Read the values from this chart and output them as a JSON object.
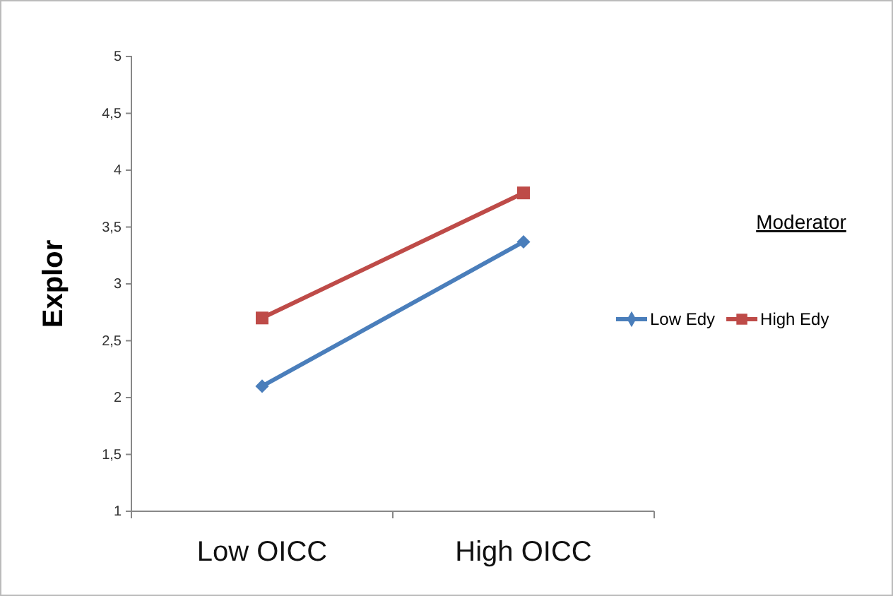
{
  "chart_data": {
    "type": "line",
    "ylabel": "Explor",
    "legend_title": "Moderator",
    "legend": "right",
    "categories": [
      "Low OICC",
      "High OICC"
    ],
    "series": [
      {
        "name": "Low Edy",
        "color": "#4a7ebb",
        "values": [
          2.1,
          3.37
        ],
        "marker": "diamond"
      },
      {
        "name": "High Edy",
        "color": "#be4b48",
        "values": [
          2.7,
          3.8
        ],
        "marker": "square"
      }
    ],
    "ylim": [
      1,
      5
    ],
    "yticks": [
      1,
      {
        "value": 1.5,
        "label": "1,5"
      },
      2,
      {
        "value": 2.5,
        "label": "2,5"
      },
      3,
      {
        "value": 3.5,
        "label": "3,5"
      },
      4,
      {
        "value": 4.5,
        "label": "4,5"
      },
      5
    ],
    "grid": false
  }
}
